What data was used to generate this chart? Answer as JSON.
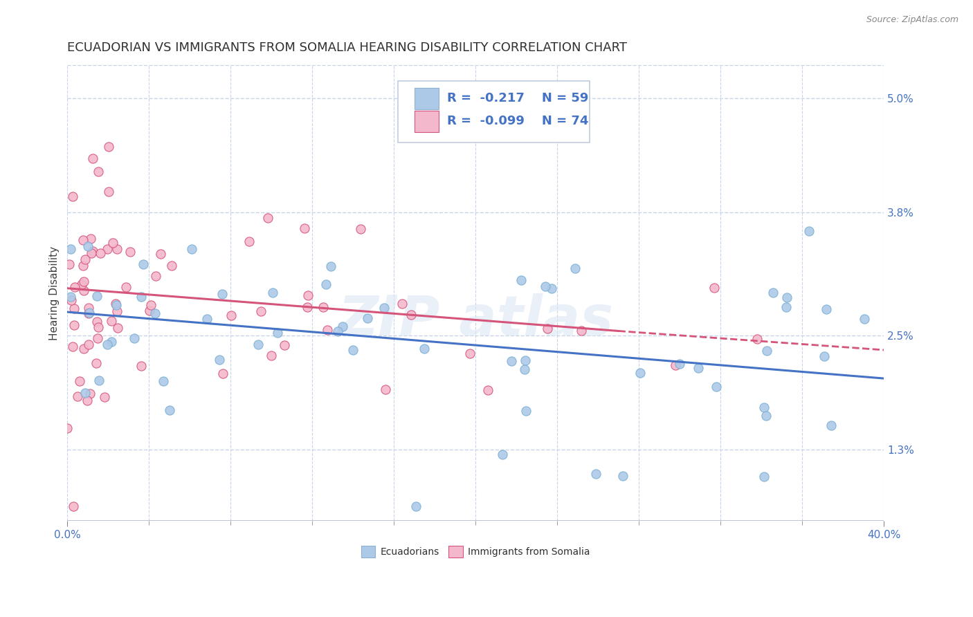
{
  "title": "ECUADORIAN VS IMMIGRANTS FROM SOMALIA HEARING DISABILITY CORRELATION CHART",
  "source": "Source: ZipAtlas.com",
  "ylabel": "Hearing Disability",
  "y_ticks": [
    1.3,
    2.5,
    3.8,
    5.0
  ],
  "x_min": 0.0,
  "x_max": 40.0,
  "y_min": 0.55,
  "y_max": 5.35,
  "ecuadorians": {
    "label": "Ecuadorians",
    "R": -0.217,
    "N": 59,
    "color": "#adc9e8",
    "trend_color": "#4472c4",
    "marker_edge": "#7aafd4"
  },
  "somalia": {
    "label": "Immigrants from Somalia",
    "R": -0.099,
    "N": 74,
    "color": "#f4b8cc",
    "trend_color": "#d4547a",
    "marker_edge": "#d4547a"
  },
  "background_color": "#ffffff",
  "grid_color": "#c8d4e8",
  "title_fontsize": 13,
  "axis_label_fontsize": 11,
  "tick_fontsize": 11,
  "legend_fontsize": 13,
  "blue_trend_start_x": 0.0,
  "blue_trend_start_y": 2.75,
  "blue_trend_end_x": 40.0,
  "blue_trend_end_y": 2.05,
  "pink_solid_start_x": 0.0,
  "pink_solid_start_y": 3.0,
  "pink_solid_end_x": 27.0,
  "pink_solid_end_y": 2.55,
  "pink_dash_start_x": 27.0,
  "pink_dash_start_y": 2.55,
  "pink_dash_end_x": 40.0,
  "pink_dash_end_y": 2.35
}
